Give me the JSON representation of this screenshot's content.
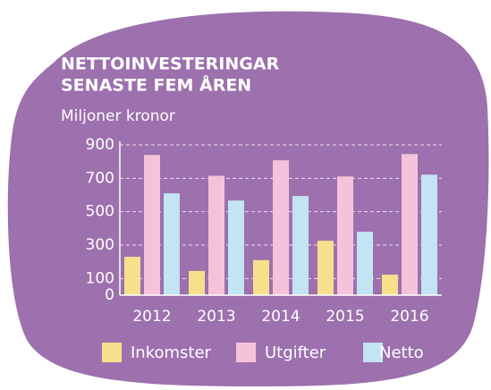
{
  "chart_data": {
    "type": "bar",
    "title": [
      "NETTOINVESTERINGAR",
      "SENASTE FEM ÅREN"
    ],
    "y_label": "Miljoner kronor",
    "categories": [
      "2012",
      "2013",
      "2014",
      "2015",
      "2016"
    ],
    "series": [
      {
        "name": "Inkomster",
        "color": "#f7df8c",
        "values": [
          230,
          145,
          210,
          326,
          123
        ]
      },
      {
        "name": "Utgifter",
        "color": "#f5c3d9",
        "values": [
          840,
          715,
          808,
          711,
          845
        ]
      },
      {
        "name": "Netto",
        "color": "#c2e4f3",
        "values": [
          610,
          567,
          594,
          380,
          722
        ]
      }
    ],
    "ylim": [
      0,
      900
    ],
    "yticks": [
      0,
      100,
      300,
      500,
      700,
      900
    ],
    "grid": true,
    "legend": "bottom"
  }
}
